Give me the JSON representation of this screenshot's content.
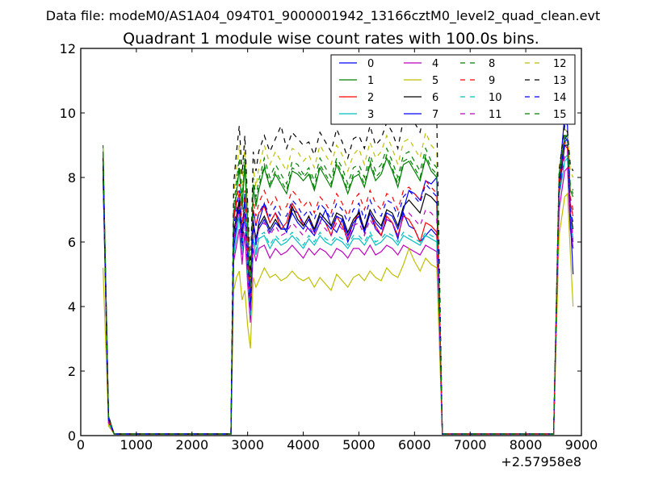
{
  "chart_data": {
    "type": "line",
    "supertitle": "Data file: modeM0/AS1A04_094T01_9000001942_13166cztM0_level2_quad_clean.evt",
    "title": "Quadrant 1 module wise count rates with 100.0s bins.",
    "xlabel": "",
    "ylabel": "",
    "x_offset_label": "+2.57958e8",
    "xlim": [
      0,
      9000
    ],
    "ylim": [
      0,
      12
    ],
    "xticks": [
      0,
      1000,
      2000,
      3000,
      4000,
      5000,
      6000,
      7000,
      8000,
      9000
    ],
    "yticks": [
      0,
      2,
      4,
      6,
      8,
      10,
      12
    ],
    "grid": false,
    "legend_position": "top-right",
    "x": [
      400,
      500,
      600,
      2700,
      2750,
      2800,
      2850,
      2900,
      2950,
      3000,
      3050,
      3100,
      3150,
      3200,
      3300,
      3400,
      3500,
      3600,
      3700,
      3800,
      3900,
      4000,
      4100,
      4200,
      4300,
      4400,
      4500,
      4600,
      4700,
      4800,
      4900,
      5000,
      5100,
      5200,
      5300,
      5400,
      5500,
      5600,
      5700,
      5800,
      5900,
      6000,
      6100,
      6200,
      6300,
      6400,
      6500,
      6600,
      8500,
      8600,
      8700,
      8750,
      8800,
      8850
    ],
    "series": [
      {
        "name": "0",
        "color": "#0000ff",
        "dash": "solid",
        "values": [
          8.8,
          0.6,
          0.05,
          0.05,
          5.8,
          6.5,
          7.3,
          6.0,
          7.5,
          5.2,
          3.8,
          6.7,
          5.9,
          6.6,
          7.2,
          6.6,
          6.9,
          6.6,
          6.3,
          7.0,
          6.9,
          6.6,
          6.4,
          6.2,
          6.6,
          7.0,
          6.5,
          6.3,
          6.7,
          6.0,
          6.4,
          7.0,
          6.3,
          6.9,
          6.4,
          6.2,
          6.7,
          6.6,
          6.1,
          6.9,
          6.5,
          6.4,
          6.0,
          6.2,
          6.4,
          6.2,
          0.05,
          0.05,
          0.05,
          8.0,
          9.9,
          9.6,
          6.5,
          5.8
        ]
      },
      {
        "name": "1",
        "color": "#008000",
        "dash": "solid",
        "values": [
          9.0,
          0.5,
          0.05,
          0.05,
          6.8,
          7.5,
          8.3,
          7.0,
          8.4,
          6.4,
          4.4,
          7.7,
          7.1,
          7.6,
          8.3,
          7.7,
          8.1,
          7.8,
          7.5,
          8.2,
          8.1,
          7.9,
          8.1,
          7.6,
          8.3,
          8.0,
          7.7,
          8.4,
          8.0,
          7.5,
          8.0,
          8.1,
          7.7,
          8.4,
          7.9,
          8.1,
          8.6,
          8.2,
          7.7,
          8.4,
          8.5,
          8.2,
          7.9,
          8.6,
          8.2,
          8.0,
          0.05,
          0.05,
          0.05,
          8.0,
          9.2,
          9.2,
          7.6,
          7.4
        ]
      },
      {
        "name": "2",
        "color": "#ff0000",
        "dash": "solid",
        "values": [
          8.6,
          0.5,
          0.05,
          0.05,
          6.7,
          7.2,
          7.5,
          6.2,
          7.2,
          5.6,
          3.9,
          7.0,
          6.5,
          6.9,
          7.1,
          6.6,
          6.9,
          6.4,
          6.6,
          7.2,
          6.9,
          6.5,
          6.8,
          6.3,
          6.8,
          6.6,
          6.2,
          6.8,
          6.5,
          6.1,
          6.6,
          6.9,
          6.3,
          6.9,
          6.5,
          6.2,
          6.8,
          6.6,
          6.2,
          6.8,
          6.7,
          6.4,
          6.0,
          6.6,
          6.5,
          6.3,
          0.05,
          0.05,
          0.05,
          7.8,
          9.0,
          8.9,
          7.2,
          6.8
        ]
      },
      {
        "name": "3",
        "color": "#00bfbf",
        "dash": "solid",
        "values": [
          8.4,
          0.4,
          0.05,
          0.05,
          5.6,
          6.2,
          6.8,
          5.6,
          7.0,
          4.9,
          3.6,
          6.1,
          5.6,
          6.1,
          6.2,
          5.8,
          6.1,
          5.9,
          6.0,
          6.2,
          6.0,
          5.8,
          6.1,
          5.9,
          6.2,
          6.0,
          5.9,
          6.1,
          6.0,
          5.8,
          6.1,
          6.1,
          5.9,
          6.2,
          5.9,
          6.0,
          6.2,
          6.1,
          5.9,
          6.2,
          6.1,
          6.0,
          5.9,
          6.2,
          6.1,
          6.0,
          0.05,
          0.05,
          0.05,
          7.4,
          8.5,
          8.6,
          6.8,
          6.1
        ]
      },
      {
        "name": "4",
        "color": "#bf00bf",
        "dash": "solid",
        "values": [
          8.2,
          0.4,
          0.05,
          0.05,
          5.4,
          5.9,
          6.4,
          5.3,
          6.3,
          4.7,
          3.5,
          5.8,
          5.4,
          5.8,
          5.9,
          5.5,
          5.8,
          5.6,
          5.7,
          5.9,
          5.7,
          5.5,
          5.8,
          5.6,
          5.8,
          5.7,
          5.5,
          5.8,
          5.7,
          5.5,
          5.8,
          5.8,
          5.6,
          5.9,
          5.6,
          5.7,
          5.9,
          5.8,
          5.6,
          5.9,
          5.8,
          5.7,
          5.6,
          5.9,
          5.8,
          5.7,
          0.05,
          0.05,
          0.05,
          7.0,
          8.2,
          8.3,
          6.4,
          5.8
        ]
      },
      {
        "name": "5",
        "color": "#bfbf00",
        "dash": "solid",
        "values": [
          5.2,
          0.3,
          0.05,
          0.05,
          4.5,
          4.9,
          5.1,
          4.2,
          4.5,
          3.4,
          2.7,
          4.9,
          4.6,
          4.8,
          5.2,
          4.9,
          5.0,
          4.8,
          4.9,
          5.1,
          4.9,
          4.8,
          4.9,
          4.6,
          4.9,
          4.7,
          4.5,
          5.0,
          4.8,
          4.6,
          4.9,
          5.0,
          4.8,
          5.1,
          4.9,
          4.8,
          5.2,
          5.0,
          4.9,
          5.3,
          5.8,
          5.4,
          5.1,
          5.5,
          5.3,
          5.2,
          0.05,
          0.05,
          0.05,
          6.2,
          7.4,
          7.5,
          5.7,
          4.0
        ]
      },
      {
        "name": "6",
        "color": "#000000",
        "dash": "solid",
        "values": [
          8.0,
          0.5,
          0.05,
          0.05,
          6.3,
          6.8,
          7.3,
          6.0,
          7.1,
          5.4,
          3.9,
          6.6,
          6.1,
          6.5,
          6.8,
          6.4,
          6.7,
          6.4,
          6.4,
          7.1,
          6.7,
          6.5,
          6.8,
          6.4,
          6.9,
          6.7,
          6.5,
          6.9,
          6.8,
          6.3,
          6.7,
          6.9,
          6.4,
          7.0,
          6.7,
          6.5,
          7.0,
          6.9,
          6.5,
          7.1,
          7.3,
          7.1,
          6.9,
          7.5,
          7.4,
          7.2,
          0.05,
          0.05,
          0.05,
          7.6,
          9.0,
          9.0,
          6.9,
          6.4
        ]
      },
      {
        "name": "7",
        "color": "#0000ff",
        "dash": "solid",
        "values": [
          8.3,
          0.5,
          0.05,
          0.05,
          6.1,
          6.6,
          7.0,
          5.8,
          6.9,
          5.3,
          3.8,
          6.5,
          6.0,
          6.4,
          6.7,
          6.3,
          6.6,
          6.4,
          6.4,
          6.9,
          6.6,
          6.4,
          6.7,
          6.3,
          6.8,
          6.6,
          6.4,
          6.8,
          6.7,
          6.2,
          6.6,
          6.8,
          6.3,
          6.9,
          6.6,
          6.4,
          6.9,
          6.8,
          6.4,
          7.0,
          7.6,
          7.5,
          7.3,
          7.9,
          7.8,
          8.0,
          0.05,
          0.05,
          0.05,
          7.7,
          9.1,
          9.2,
          6.8,
          5.0
        ]
      },
      {
        "name": "8",
        "color": "#008000",
        "dash": "dashed",
        "values": [
          8.7,
          0.6,
          0.05,
          0.05,
          6.9,
          7.6,
          8.5,
          7.2,
          8.6,
          6.5,
          4.5,
          7.8,
          7.2,
          7.7,
          8.4,
          7.8,
          8.2,
          7.9,
          7.6,
          8.3,
          8.2,
          8.0,
          8.2,
          7.7,
          8.4,
          8.1,
          7.8,
          8.5,
          8.1,
          7.6,
          8.1,
          8.2,
          7.8,
          8.5,
          8.0,
          8.2,
          8.7,
          8.3,
          7.8,
          8.5,
          8.6,
          8.3,
          8.0,
          8.7,
          8.3,
          8.1,
          0.05,
          0.05,
          0.05,
          8.1,
          9.3,
          9.3,
          7.7,
          7.5
        ]
      },
      {
        "name": "9",
        "color": "#ff0000",
        "dash": "dashed",
        "values": [
          8.5,
          0.5,
          0.05,
          0.05,
          6.8,
          7.3,
          7.8,
          6.5,
          7.6,
          5.8,
          4.1,
          7.3,
          6.8,
          7.2,
          7.6,
          7.1,
          7.4,
          7.0,
          7.1,
          7.6,
          7.4,
          7.1,
          7.3,
          6.9,
          7.4,
          7.2,
          6.9,
          7.5,
          7.2,
          6.8,
          7.3,
          7.5,
          7.0,
          7.6,
          7.2,
          7.0,
          7.5,
          7.4,
          7.0,
          7.6,
          7.7,
          7.5,
          7.3,
          7.9,
          7.7,
          7.5,
          0.05,
          0.05,
          0.05,
          7.9,
          9.1,
          9.0,
          7.4,
          7.0
        ]
      },
      {
        "name": "10",
        "color": "#00bfbf",
        "dash": "dashed",
        "values": [
          8.1,
          0.4,
          0.05,
          0.05,
          5.7,
          6.3,
          6.9,
          5.7,
          7.1,
          5.0,
          3.7,
          6.2,
          5.7,
          6.2,
          6.3,
          5.9,
          6.2,
          6.0,
          6.1,
          6.3,
          6.1,
          5.9,
          6.2,
          6.0,
          6.3,
          6.1,
          6.0,
          6.2,
          6.1,
          5.9,
          6.2,
          6.2,
          6.0,
          6.3,
          6.0,
          6.1,
          6.3,
          6.2,
          6.0,
          6.3,
          6.2,
          6.1,
          6.0,
          6.3,
          6.2,
          6.1,
          0.05,
          0.05,
          0.05,
          7.5,
          8.6,
          8.7,
          6.9,
          6.2
        ]
      },
      {
        "name": "11",
        "color": "#bf00bf",
        "dash": "dashed",
        "values": [
          8.3,
          0.4,
          0.05,
          0.05,
          6.0,
          6.6,
          7.1,
          5.9,
          6.9,
          5.2,
          3.9,
          6.5,
          6.0,
          6.4,
          6.6,
          6.2,
          6.5,
          6.2,
          6.3,
          6.6,
          6.4,
          6.2,
          6.5,
          6.2,
          6.6,
          6.4,
          6.2,
          6.6,
          6.4,
          6.1,
          6.5,
          6.6,
          6.2,
          6.7,
          6.4,
          6.3,
          6.7,
          6.6,
          6.2,
          6.8,
          6.9,
          6.7,
          6.5,
          7.0,
          6.9,
          6.7,
          0.05,
          0.05,
          0.05,
          7.5,
          8.7,
          8.8,
          6.9,
          6.0
        ]
      },
      {
        "name": "12",
        "color": "#bfbf00",
        "dash": "dashed",
        "values": [
          8.9,
          0.6,
          0.05,
          0.05,
          7.4,
          8.3,
          9.0,
          7.7,
          9.0,
          6.9,
          4.7,
          8.3,
          7.7,
          8.3,
          9.0,
          8.4,
          8.8,
          8.5,
          8.2,
          8.9,
          8.8,
          8.5,
          8.7,
          8.3,
          9.0,
          8.7,
          8.4,
          9.0,
          8.7,
          8.2,
          8.7,
          8.9,
          8.4,
          9.1,
          8.6,
          8.8,
          9.3,
          8.9,
          8.4,
          9.1,
          9.2,
          8.9,
          8.6,
          9.4,
          9.0,
          8.8,
          0.05,
          0.05,
          0.05,
          8.3,
          9.5,
          9.4,
          8.2,
          8.0
        ]
      },
      {
        "name": "13",
        "color": "#000000",
        "dash": "dashed",
        "values": [
          8.6,
          0.6,
          0.05,
          0.05,
          7.8,
          8.8,
          9.6,
          8.1,
          9.3,
          7.2,
          4.9,
          8.8,
          8.2,
          8.8,
          9.3,
          8.8,
          9.2,
          9.6,
          8.9,
          9.4,
          9.2,
          9.0,
          9.1,
          8.7,
          9.4,
          9.1,
          8.8,
          9.5,
          9.1,
          8.6,
          9.2,
          9.3,
          8.9,
          9.6,
          9.0,
          9.2,
          9.7,
          9.4,
          8.9,
          9.8,
          10.1,
          9.7,
          9.4,
          10.2,
          10.0,
          9.8,
          0.05,
          0.05,
          0.05,
          8.2,
          9.6,
          9.4,
          8.4,
          8.2
        ]
      },
      {
        "name": "14",
        "color": "#0000ff",
        "dash": "dashed",
        "values": [
          8.4,
          0.5,
          0.05,
          0.05,
          6.5,
          7.0,
          7.6,
          6.3,
          7.4,
          5.6,
          4.0,
          7.0,
          6.5,
          6.9,
          7.2,
          6.8,
          7.1,
          6.8,
          6.8,
          7.3,
          7.1,
          6.8,
          7.0,
          6.7,
          7.2,
          7.0,
          6.7,
          7.2,
          7.0,
          6.6,
          7.0,
          7.2,
          6.7,
          7.3,
          6.9,
          6.8,
          7.3,
          7.2,
          6.8,
          7.4,
          7.6,
          7.4,
          7.2,
          7.8,
          7.6,
          7.4,
          0.05,
          0.05,
          0.05,
          7.8,
          9.2,
          9.3,
          7.0,
          6.6
        ]
      },
      {
        "name": "15",
        "color": "#008000",
        "dash": "dashed",
        "values": [
          8.8,
          0.6,
          0.05,
          0.05,
          7.1,
          7.9,
          8.6,
          7.3,
          8.6,
          6.6,
          4.6,
          8.0,
          7.4,
          7.9,
          8.6,
          8.0,
          8.4,
          8.1,
          7.8,
          8.5,
          8.4,
          8.1,
          8.3,
          7.9,
          8.6,
          8.3,
          8.0,
          8.6,
          8.3,
          7.8,
          8.3,
          8.4,
          8.0,
          8.7,
          8.2,
          8.4,
          8.9,
          8.5,
          8.0,
          8.7,
          8.8,
          8.5,
          8.2,
          8.9,
          8.5,
          8.3,
          0.05,
          0.05,
          0.05,
          8.1,
          9.3,
          9.2,
          7.8,
          7.6
        ]
      }
    ]
  }
}
